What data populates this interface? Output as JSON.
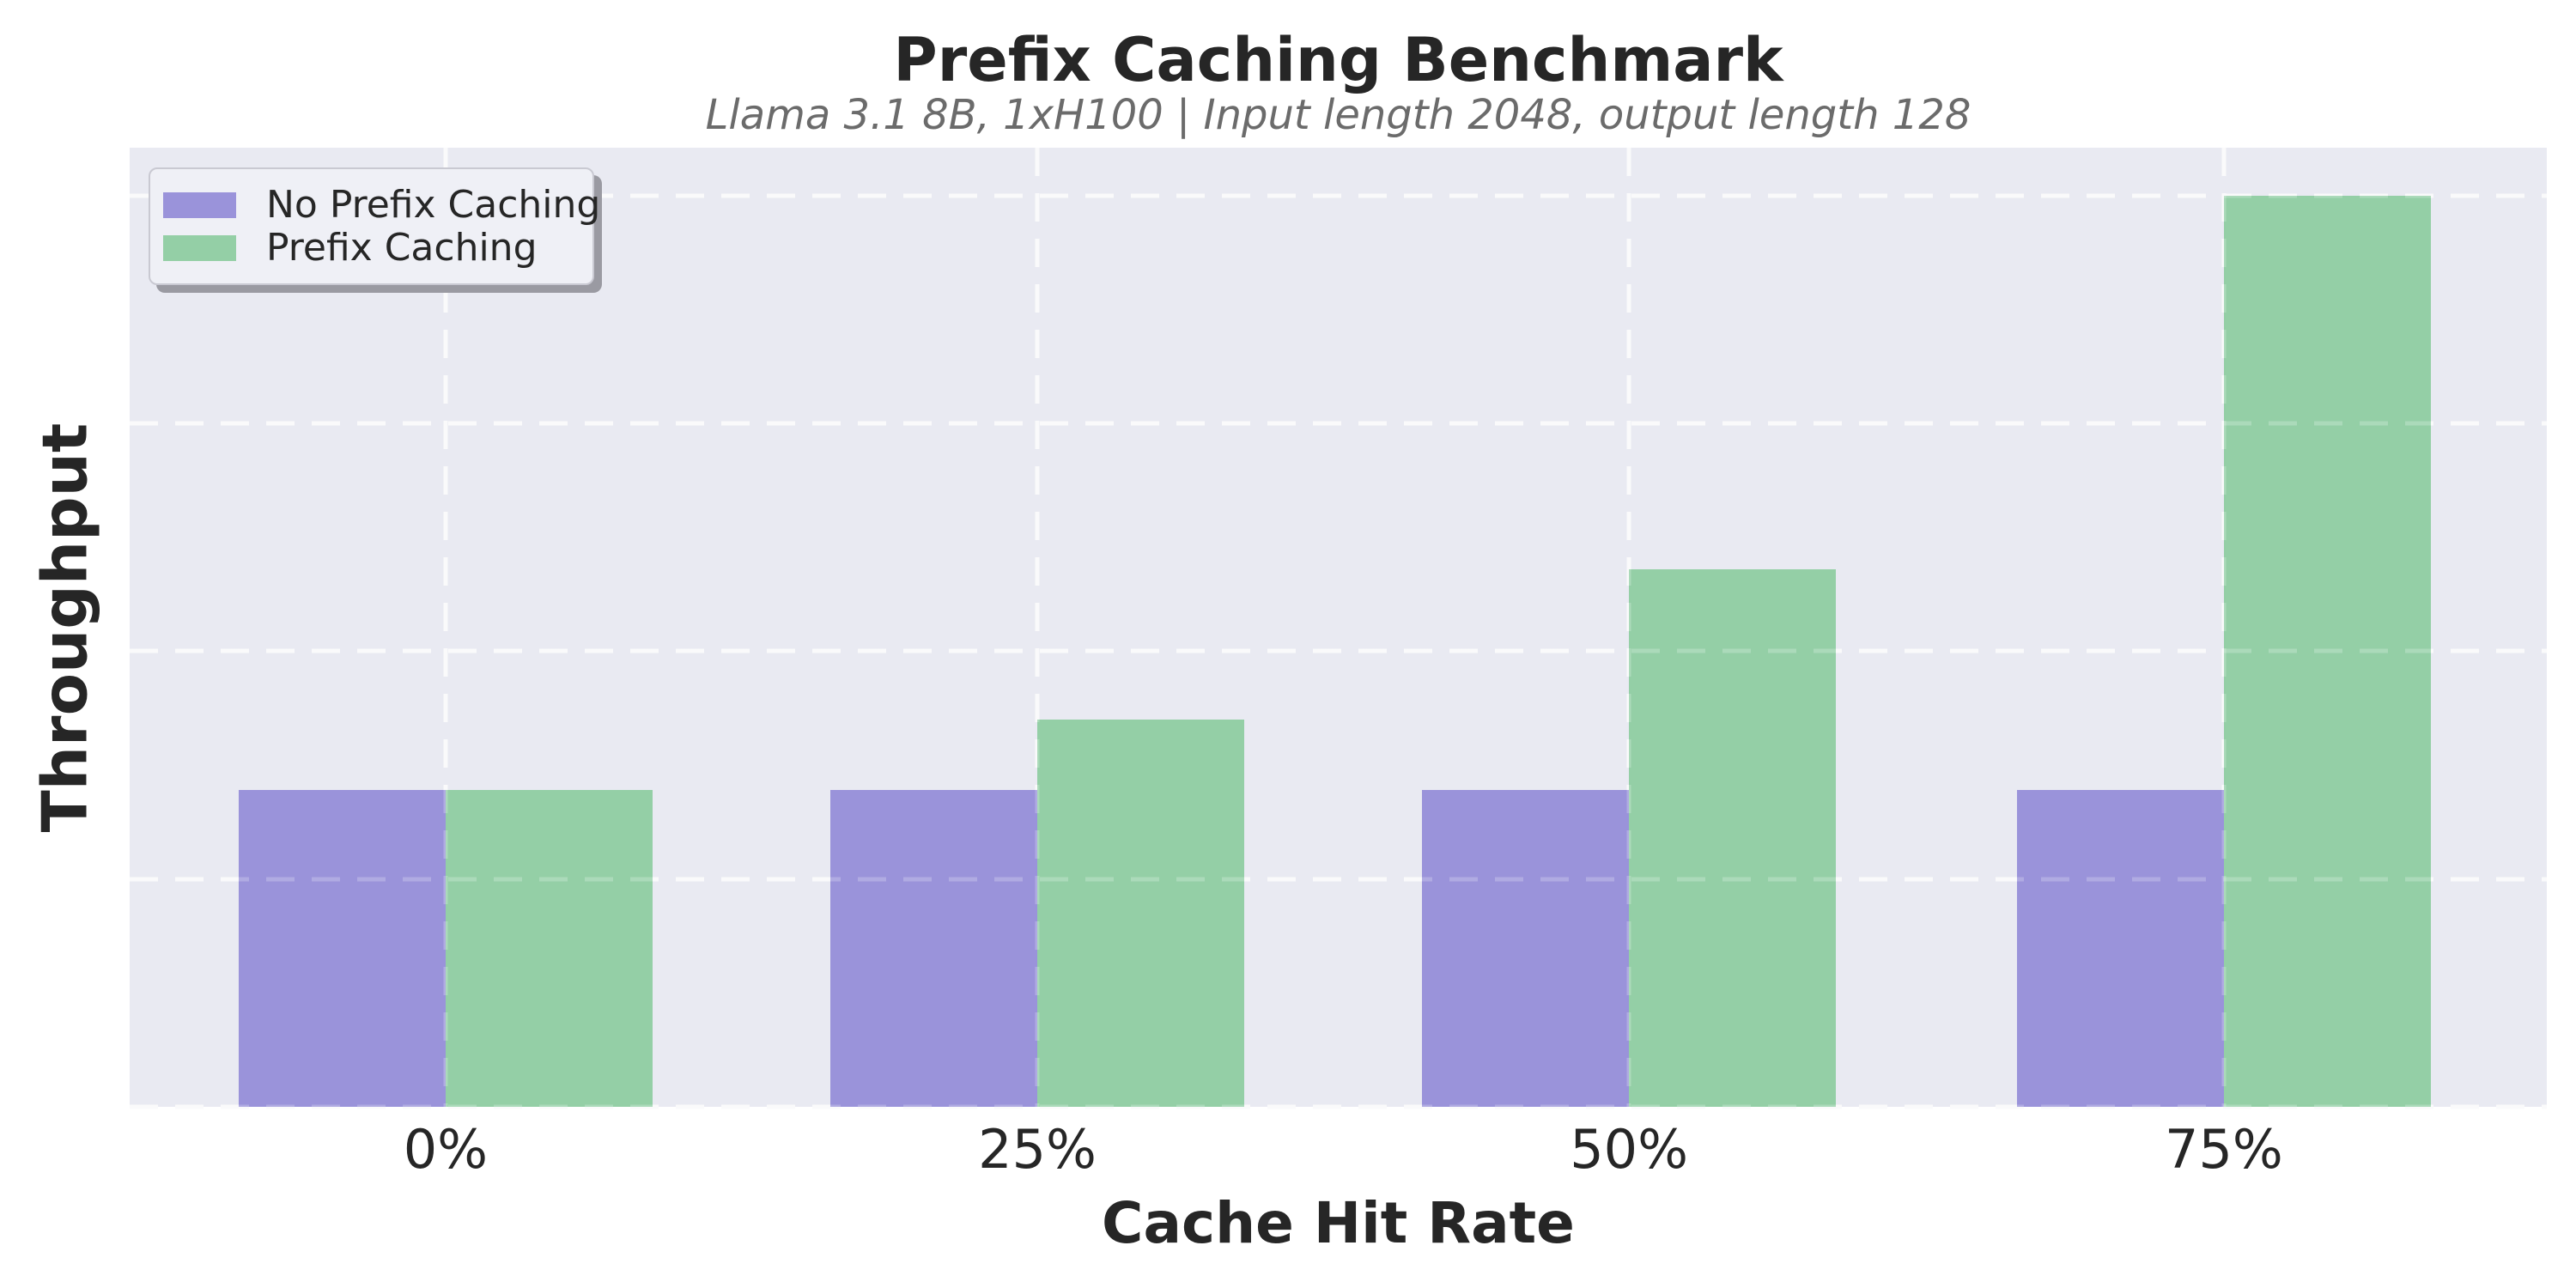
{
  "header": {
    "title": "Prefix Caching Benchmark",
    "subtitle": "Llama 3.1 8B, 1xH100 | Input length 2048, output length 128"
  },
  "axes": {
    "x_label": "Cache Hit Rate",
    "y_label": "Throughput",
    "x_tick_labels": [
      "0%",
      "25%",
      "50%",
      "75%"
    ],
    "y_tick_labels": []
  },
  "legend": {
    "items": [
      {
        "label": "No Prefix Caching",
        "color": "#9a93da"
      },
      {
        "label": "Prefix Caching",
        "color": "#94cfa6"
      }
    ],
    "position": "upper left"
  },
  "colors": {
    "page_background": "#ffffff",
    "plot_background": "#e9eaf2",
    "gridline": "#f8f8fa",
    "text": "#262626",
    "subtitle_text": "#6b6b6b",
    "legend_background": "#eff0f6",
    "legend_border": "#c9c9d2",
    "legend_shadow": "#9a9aa2",
    "bar_no_prefix_caching": "#9a93da",
    "bar_prefix_caching": "#94cfa6"
  },
  "chart_data": {
    "type": "bar",
    "title": "Prefix Caching Benchmark",
    "subtitle": "Llama 3.1 8B, 1xH100 | Input length 2048, output length 128",
    "xlabel": "Cache Hit Rate",
    "ylabel": "Throughput",
    "categories": [
      "0%",
      "25%",
      "50%",
      "75%"
    ],
    "series": [
      {
        "name": "No Prefix Caching",
        "color": "#9a93da",
        "values": [
          1.39,
          1.39,
          1.39,
          1.39
        ]
      },
      {
        "name": "Prefix Caching",
        "color": "#94cfa6",
        "values": [
          1.39,
          1.7,
          2.36,
          4.0
        ]
      }
    ],
    "speedup_vs_baseline": [
      1.0,
      1.22,
      1.7,
      2.88
    ],
    "value_note": "y-axis has no numeric tick labels; values expressed in unlabeled gridline units (gridlines at 1,2,3,4)",
    "ylim": [
      0,
      4.21
    ],
    "ytick_step": 1,
    "grid": "dashed white horizontal and vertical gridlines on",
    "legend_position": "upper left",
    "layout": {
      "group_center_fractions": [
        0.1307,
        0.3755,
        0.6203,
        0.8664
      ],
      "bar_width_fraction": 0.0856
    }
  }
}
